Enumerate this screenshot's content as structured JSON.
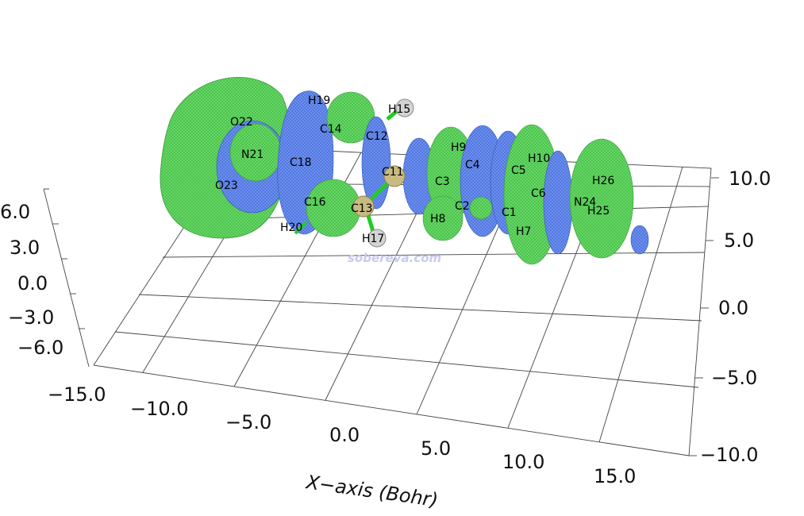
{
  "x_axis": {
    "title": "X−axis (Bohr)",
    "ticks": [
      "−15.0",
      "−10.0",
      "−5.0",
      "0.0",
      "5.0",
      "10.0",
      "15.0"
    ]
  },
  "y_axis": {
    "ticks": [
      "−10.0",
      "−5.0",
      "0.0",
      "5.0",
      "10.0"
    ]
  },
  "z_axis": {
    "ticks": [
      "6.0",
      "3.0",
      "0.0",
      "−3.0",
      "−6.0"
    ]
  },
  "watermark": "sobereva.com",
  "colors": {
    "positive_lobe": "#5fd35f",
    "negative_lobe": "#5b86ee",
    "bond": "#22cc22",
    "carbon_atom": "#c8bb80",
    "hydrogen_atom": "#d4d4d4"
  },
  "atoms": [
    "O22",
    "N21",
    "O23",
    "H19",
    "C14",
    "C18",
    "C16",
    "H20",
    "C12",
    "H15",
    "C11",
    "C13",
    "H17",
    "H9",
    "C4",
    "C3",
    "C2",
    "H8",
    "C5",
    "H10",
    "C6",
    "C1",
    "H7",
    "H26",
    "N24",
    "H25"
  ]
}
